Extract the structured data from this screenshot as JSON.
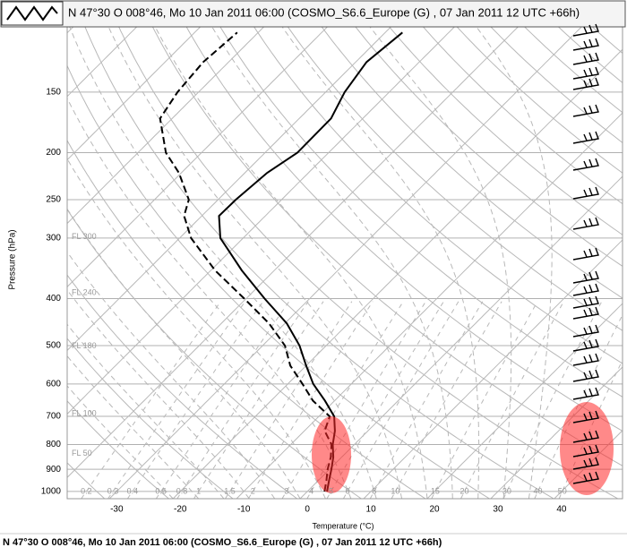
{
  "chart_data": {
    "type": "skewt",
    "title": "N 47°30 O 008°46, Mo 10 Jan 2011 06:00 (COSMO_S6.6_Europe (G) , 07 Jan 2011 12 UTC +66h)",
    "x_label": "Temperature (°C)",
    "y_label": "Pressure (hPa)",
    "xlim": [
      -37.8,
      49.6
    ],
    "xticks": [
      -30,
      -20,
      -10,
      0,
      10,
      20,
      30,
      40
    ],
    "ylim": [
      1035,
      110
    ],
    "yticks": [
      150,
      200,
      250,
      300,
      400,
      500,
      600,
      700,
      800,
      900,
      1000
    ],
    "log_y": true,
    "grid": true,
    "pressure": [
      1000,
      950,
      900,
      850,
      800,
      750,
      700,
      650,
      600,
      550,
      500,
      450,
      400,
      350,
      300,
      270,
      250,
      220,
      200,
      170,
      150,
      130,
      113
    ],
    "series": [
      {
        "color": "#000000",
        "style": "solid",
        "values": [
          3.1,
          1.7,
          0.3,
          -1.3,
          -3.4,
          -5.2,
          -7.6,
          -11.5,
          -16.0,
          -20.0,
          -24.2,
          -29.7,
          -37.1,
          -45.1,
          -53.6,
          -57.3,
          -57.2,
          -56.5,
          -54.9,
          -55.0,
          -57.0,
          -58.3,
          -57.3
        ]
      },
      {
        "color": "#000000",
        "style": "dashed",
        "values": [
          2.7,
          1.3,
          -0.3,
          -1.7,
          -3.6,
          -6.8,
          -8.3,
          -13.4,
          -17.7,
          -22.5,
          -26.5,
          -32.5,
          -40.3,
          -49.3,
          -58.2,
          -62.8,
          -64.6,
          -70.4,
          -75.6,
          -81.9,
          -83.3,
          -84.0,
          -83.3
        ]
      }
    ],
    "mixing_ratios": [
      0.2,
      0.3,
      0.4,
      0.6,
      0.8,
      1,
      1.5,
      2,
      3,
      4,
      5,
      6,
      8,
      10,
      15,
      20,
      30,
      40,
      50
    ],
    "flight_levels": [
      {
        "value": 300,
        "label": "FL 300"
      },
      {
        "value": 240,
        "label": "FL 240"
      },
      {
        "value": 180,
        "label": "FL 180"
      },
      {
        "value": 100,
        "label": "FL 100"
      },
      {
        "value": 50,
        "label": "FL 50"
      }
    ]
  }
}
